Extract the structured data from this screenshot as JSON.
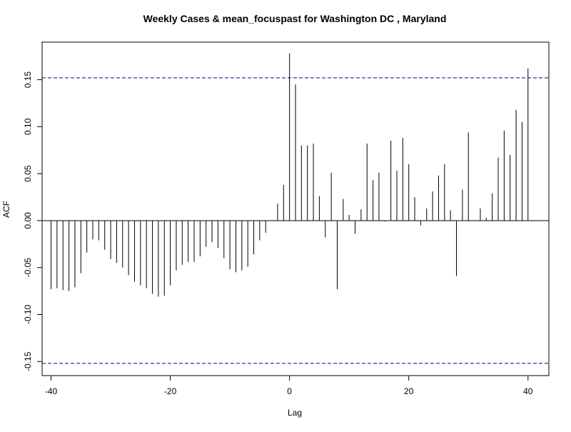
{
  "chart_data": {
    "type": "bar",
    "title": "Weekly Cases & mean_focuspast for Washington DC , Maryland",
    "xlabel": "Lag",
    "ylabel": "ACF",
    "xlim": [
      -41.5,
      43.5
    ],
    "ylim": [
      -0.165,
      0.19
    ],
    "x_ticks": [
      -40,
      -20,
      0,
      20,
      40
    ],
    "x_tick_labels": [
      "-40",
      "-20",
      "0",
      "20",
      "40"
    ],
    "y_ticks": [
      -0.15,
      -0.1,
      -0.05,
      0.0,
      0.05,
      0.1,
      0.15
    ],
    "y_tick_labels": [
      "-0.15",
      "-0.10",
      "-0.05",
      "0.00",
      "0.05",
      "0.10",
      "0.15"
    ],
    "confidence_bounds": [
      0.152,
      -0.152
    ],
    "zero_line": true,
    "grid": false,
    "colors": {
      "bars": "#000000",
      "confidence": "#00008b",
      "axes": "#000000"
    },
    "x": [
      -40,
      -39,
      -38,
      -37,
      -36,
      -35,
      -34,
      -33,
      -32,
      -31,
      -30,
      -29,
      -28,
      -27,
      -26,
      -25,
      -24,
      -23,
      -22,
      -21,
      -20,
      -19,
      -18,
      -17,
      -16,
      -15,
      -14,
      -13,
      -12,
      -11,
      -10,
      -9,
      -8,
      -7,
      -6,
      -5,
      -4,
      -3,
      -2,
      -1,
      0,
      1,
      2,
      3,
      4,
      5,
      6,
      7,
      8,
      9,
      10,
      11,
      12,
      13,
      14,
      15,
      16,
      17,
      18,
      19,
      20,
      21,
      22,
      23,
      24,
      25,
      26,
      27,
      28,
      29,
      30,
      31,
      32,
      33,
      34,
      35,
      36,
      37,
      38,
      39,
      40
    ],
    "values": [
      -0.073,
      -0.072,
      -0.074,
      -0.075,
      -0.071,
      -0.056,
      -0.034,
      -0.02,
      -0.021,
      -0.031,
      -0.041,
      -0.045,
      -0.05,
      -0.058,
      -0.065,
      -0.069,
      -0.072,
      -0.078,
      -0.081,
      -0.08,
      -0.069,
      -0.053,
      -0.047,
      -0.044,
      -0.044,
      -0.038,
      -0.028,
      -0.023,
      -0.029,
      -0.04,
      -0.052,
      -0.055,
      -0.053,
      -0.049,
      -0.036,
      -0.021,
      -0.013,
      0.0,
      0.018,
      0.038,
      0.178,
      0.145,
      0.08,
      0.08,
      0.082,
      0.026,
      -0.018,
      0.051,
      -0.073,
      0.023,
      0.006,
      -0.014,
      0.012,
      0.082,
      0.043,
      0.051,
      -0.001,
      0.085,
      0.053,
      0.088,
      0.06,
      0.025,
      -0.005,
      0.013,
      0.031,
      0.048,
      0.06,
      0.011,
      -0.059,
      0.033,
      0.094,
      0.0,
      0.013,
      0.003,
      0.029,
      0.067,
      0.096,
      0.07,
      0.118,
      0.105,
      0.162
    ]
  }
}
